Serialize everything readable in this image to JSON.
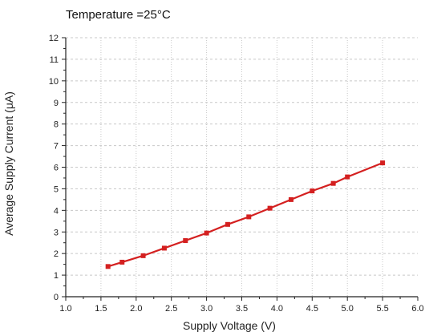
{
  "chart_data": {
    "type": "line",
    "title": "Temperature =25°C",
    "xlabel": "Supply Voltage (V)",
    "ylabel": "Average Supply Current (μA)",
    "xlim": [
      1.0,
      6.0
    ],
    "ylim": [
      0,
      12
    ],
    "x_ticks": [
      "1.0",
      "1.5",
      "2.0",
      "2.5",
      "3.0",
      "3.5",
      "4.0",
      "4.5",
      "5.0",
      "5.5",
      "6.0"
    ],
    "y_ticks": [
      "0",
      "1",
      "2",
      "3",
      "4",
      "5",
      "6",
      "7",
      "8",
      "9",
      "10",
      "11",
      "12"
    ],
    "grid": true,
    "series": [
      {
        "color": "#d42020",
        "marker": "square",
        "x": [
          1.6,
          1.8,
          2.1,
          2.4,
          2.7,
          3.0,
          3.3,
          3.6,
          3.9,
          4.2,
          4.5,
          4.8,
          5.0,
          5.5
        ],
        "y": [
          1.4,
          1.6,
          1.9,
          2.25,
          2.6,
          2.95,
          3.35,
          3.7,
          4.1,
          4.5,
          4.9,
          5.25,
          5.55,
          6.2
        ]
      }
    ]
  }
}
